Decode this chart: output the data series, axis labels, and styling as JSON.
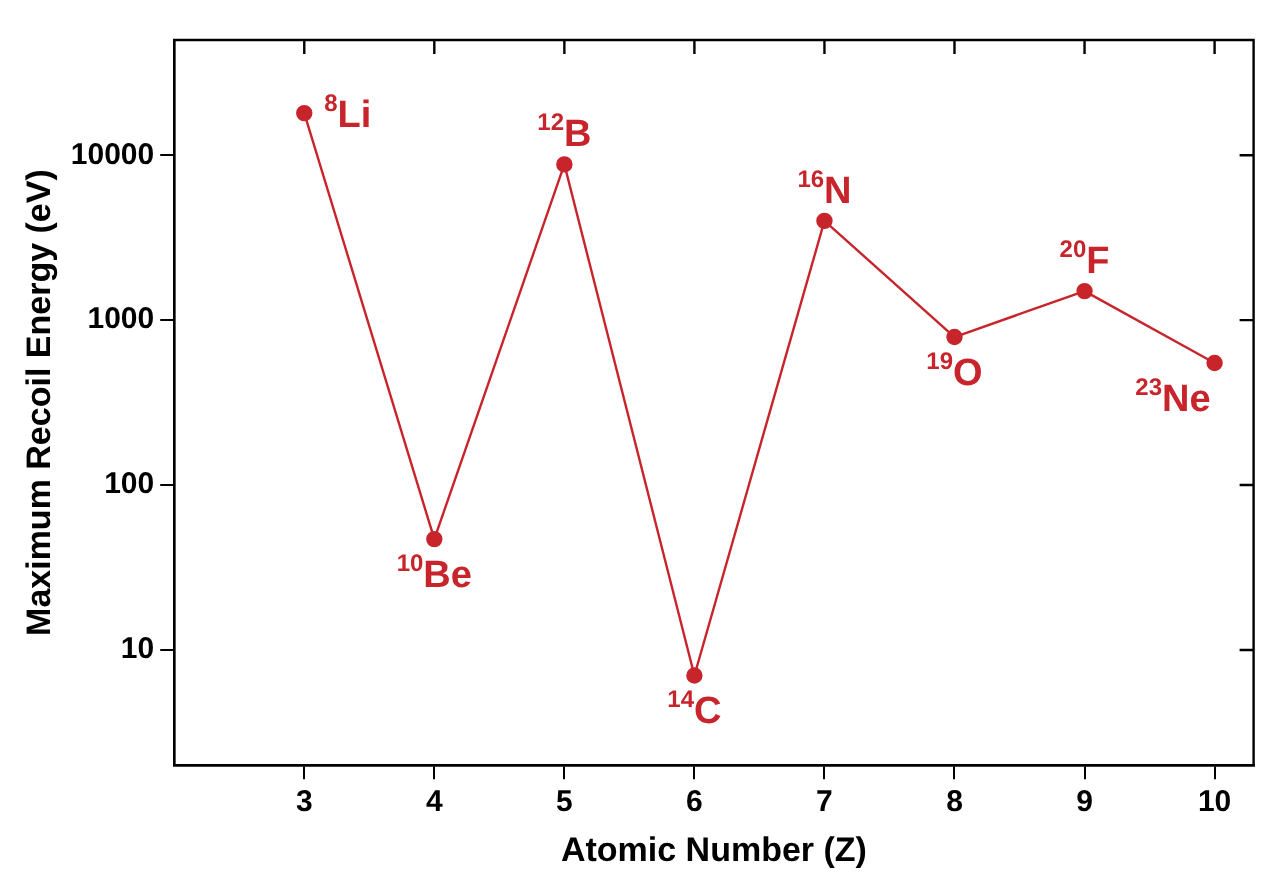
{
  "chart_data": {
    "type": "line",
    "xlabel": "Atomic Number (Z)",
    "ylabel": "Maximum Recoil Energy (eV)",
    "x": [
      3,
      4,
      5,
      6,
      7,
      8,
      9,
      10
    ],
    "series": [
      {
        "color": "#c8242b",
        "values": [
          18000,
          47,
          8800,
          7,
          4000,
          790,
          1500,
          550
        ]
      }
    ],
    "log": "y",
    "xlim": [
      2,
      10.3
    ],
    "xticks": [
      3,
      4,
      5,
      6,
      7,
      8,
      9,
      10
    ],
    "ylim": [
      2,
      50000
    ],
    "yticks": [
      10,
      100,
      1000,
      10000
    ],
    "grid": false,
    "legend": false,
    "marker": "circle",
    "line_style": "solid",
    "annotations": [
      {
        "text": "$^{8}$Li",
        "x": 3,
        "y": 18000
      },
      {
        "text": "$^{10}$Be",
        "x": 4,
        "y": 47
      },
      {
        "text": "$^{12}$B",
        "x": 5,
        "y": 8800
      },
      {
        "text": "$^{14}$C",
        "x": 6,
        "y": 7
      },
      {
        "text": "$^{16}$N",
        "x": 7,
        "y": 4000
      },
      {
        "text": "$^{19}$O",
        "x": 8,
        "y": 790
      },
      {
        "text": "$^{20}$F",
        "x": 9,
        "y": 1500
      },
      {
        "text": "$^{23}$Ne",
        "x": 10,
        "y": 550
      }
    ]
  }
}
